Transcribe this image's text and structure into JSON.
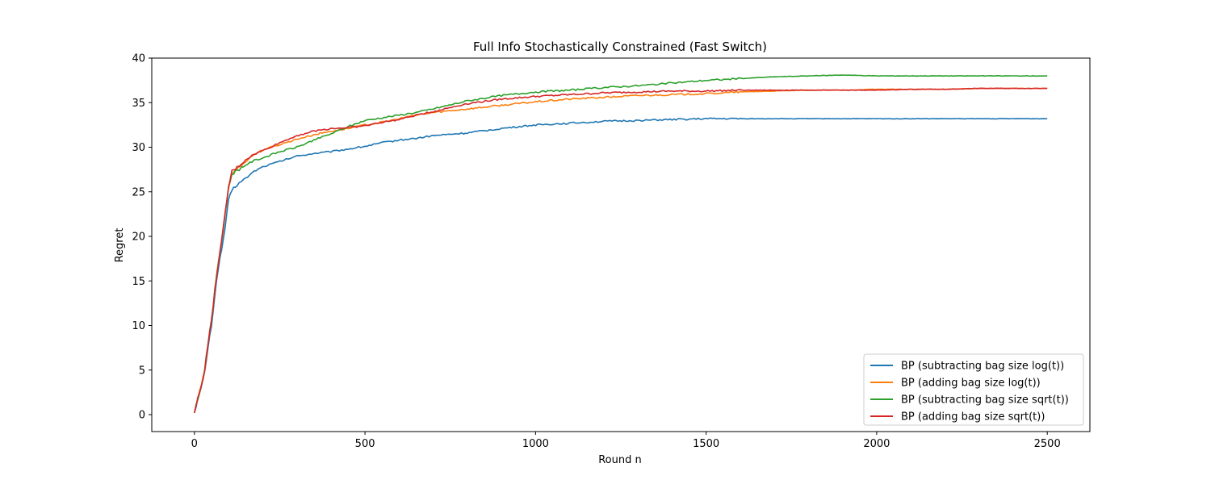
{
  "chart_data": {
    "type": "line",
    "title": "Full Info Stochastically Constrained (Fast Switch)",
    "xlabel": "Round n",
    "ylabel": "Regret",
    "xlim": [
      -125,
      2625
    ],
    "ylim": [
      -1.9,
      40
    ],
    "xticks": [
      0,
      500,
      1000,
      1500,
      2000,
      2500
    ],
    "yticks": [
      0,
      5,
      10,
      15,
      20,
      25,
      30,
      35,
      40
    ],
    "grid": false,
    "legend_position": "lower-right",
    "x": [
      0,
      10,
      20,
      30,
      40,
      50,
      60,
      70,
      80,
      90,
      100,
      110,
      125,
      150,
      175,
      200,
      250,
      300,
      350,
      400,
      450,
      500,
      550,
      600,
      650,
      700,
      800,
      900,
      1000,
      1100,
      1200,
      1300,
      1400,
      1500,
      1600,
      1700,
      1800,
      1900,
      2000,
      2100,
      2200,
      2300,
      2400,
      2500
    ],
    "series": [
      {
        "name": "BP (subtracting bag size log(t))",
        "color": "#1f77b4",
        "values": [
          0.2,
          1.8,
          3.0,
          4.8,
          7.5,
          10.0,
          13.5,
          16.5,
          18.5,
          21.0,
          24.0,
          25.2,
          25.8,
          26.5,
          27.3,
          27.8,
          28.4,
          29.0,
          29.3,
          29.5,
          29.8,
          30.1,
          30.5,
          30.8,
          31.0,
          31.3,
          31.6,
          32.1,
          32.5,
          32.7,
          32.9,
          33.0,
          33.1,
          33.2,
          33.2,
          33.2,
          33.2,
          33.2,
          33.2,
          33.2,
          33.2,
          33.2,
          33.2,
          33.2
        ]
      },
      {
        "name": "BP (adding bag size log(t))",
        "color": "#ff7f0e",
        "values": [
          0.2,
          1.8,
          3.2,
          5.0,
          8.0,
          10.5,
          14.0,
          17.0,
          19.5,
          22.5,
          25.5,
          27.0,
          27.6,
          28.4,
          29.2,
          29.7,
          30.3,
          30.9,
          31.4,
          31.8,
          32.1,
          32.5,
          32.8,
          33.2,
          33.6,
          33.9,
          34.3,
          34.7,
          35.1,
          35.4,
          35.6,
          35.8,
          35.9,
          36.0,
          36.2,
          36.3,
          36.4,
          36.4,
          36.5,
          36.5,
          36.5,
          36.6,
          36.6,
          36.6
        ]
      },
      {
        "name": "BP (subtracting bag size sqrt(t))",
        "color": "#2ca02c",
        "values": [
          0.2,
          1.8,
          3.2,
          5.0,
          8.0,
          10.5,
          14.0,
          17.0,
          19.5,
          22.5,
          25.5,
          27.0,
          27.4,
          28.0,
          28.5,
          28.8,
          29.5,
          30.0,
          30.8,
          31.5,
          32.3,
          33.0,
          33.3,
          33.6,
          33.9,
          34.3,
          35.2,
          35.8,
          36.2,
          36.4,
          36.7,
          36.9,
          37.2,
          37.5,
          37.7,
          37.9,
          38.0,
          38.1,
          38.0,
          38.0,
          38.0,
          38.0,
          38.0,
          38.0
        ]
      },
      {
        "name": "BP (adding bag size sqrt(t))",
        "color": "#d62728",
        "values": [
          0.2,
          1.8,
          3.2,
          5.0,
          8.0,
          10.5,
          14.0,
          17.0,
          19.5,
          22.5,
          25.5,
          27.3,
          27.7,
          28.6,
          29.2,
          29.6,
          30.5,
          31.3,
          31.8,
          32.1,
          32.2,
          32.4,
          32.8,
          33.1,
          33.6,
          34.0,
          34.9,
          35.4,
          35.7,
          35.9,
          36.1,
          36.2,
          36.3,
          36.3,
          36.4,
          36.4,
          36.4,
          36.4,
          36.4,
          36.5,
          36.5,
          36.6,
          36.6,
          36.6
        ]
      }
    ]
  }
}
